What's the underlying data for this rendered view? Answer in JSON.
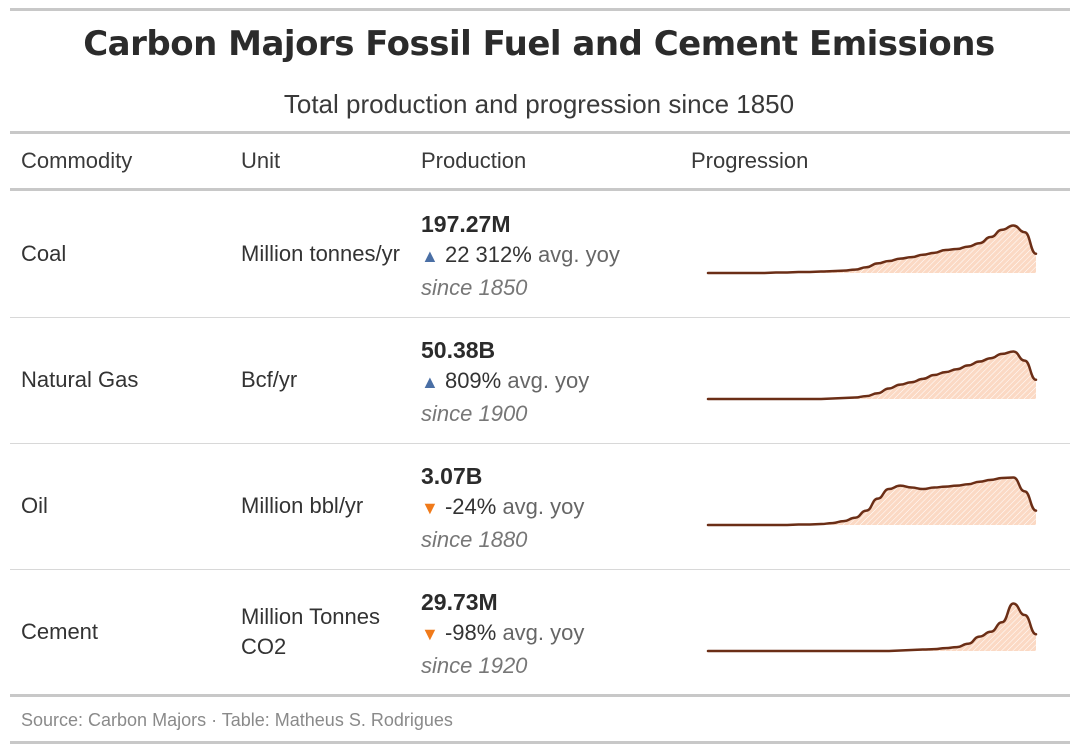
{
  "title": "Carbon Majors Fossil Fuel and Cement Emissions",
  "subtitle": "Total production and progression since 1850",
  "columns": [
    "Commodity",
    "Unit",
    "Production",
    "Progression"
  ],
  "source": "Source: Carbon Majors · Table: Matheus S. Rodrigues",
  "colors": {
    "line": "#6b2e16",
    "fill": "#fbd9c4",
    "up": "#4a6fa5",
    "down": "#f07a1a"
  },
  "chart_data": {
    "type": "table",
    "title": "Carbon Majors Fossil Fuel and Cement Emissions",
    "subtitle": "Total production and progression since 1850",
    "rows": [
      {
        "commodity": "Coal",
        "unit": "Million tonnes/yr",
        "production": "197.27M",
        "direction": "up",
        "yoy": "22 312%",
        "yoy_suffix": "avg. yoy",
        "since": "since 1850",
        "trend": [
          0,
          0,
          0,
          0,
          0,
          0,
          0.01,
          0.01,
          0.02,
          0.02,
          0.03,
          0.04,
          0.05,
          0.07,
          0.12,
          0.2,
          0.25,
          0.3,
          0.33,
          0.38,
          0.42,
          0.48,
          0.5,
          0.55,
          0.62,
          0.75,
          0.9,
          0.99,
          0.85,
          0.4
        ]
      },
      {
        "commodity": "Natural Gas",
        "unit": "Bcf/yr",
        "production": "50.38B",
        "direction": "up",
        "yoy": "809%",
        "yoy_suffix": "avg. yoy",
        "since": "since 1900",
        "trend": [
          0,
          0,
          0,
          0,
          0,
          0,
          0,
          0,
          0,
          0,
          0,
          0.01,
          0.02,
          0.03,
          0.06,
          0.12,
          0.22,
          0.3,
          0.35,
          0.42,
          0.5,
          0.56,
          0.62,
          0.7,
          0.78,
          0.85,
          0.94,
          0.99,
          0.8,
          0.4
        ]
      },
      {
        "commodity": "Oil",
        "unit": "Million bbl/yr",
        "production": "3.07B",
        "direction": "down",
        "yoy": "-24%",
        "yoy_suffix": "avg. yoy",
        "since": "since 1880",
        "trend": [
          0,
          0,
          0,
          0,
          0,
          0,
          0,
          0,
          0.01,
          0.01,
          0.02,
          0.04,
          0.08,
          0.15,
          0.3,
          0.55,
          0.75,
          0.82,
          0.78,
          0.75,
          0.78,
          0.8,
          0.82,
          0.85,
          0.9,
          0.94,
          0.98,
          0.99,
          0.7,
          0.3
        ]
      },
      {
        "commodity": "Cement",
        "unit": "Million Tonnes CO2",
        "production": "29.73M",
        "direction": "down",
        "yoy": "-98%",
        "yoy_suffix": "avg. yoy",
        "since": "since 1920",
        "trend": [
          0,
          0,
          0,
          0,
          0,
          0,
          0,
          0,
          0,
          0,
          0,
          0,
          0,
          0,
          0,
          0,
          0,
          0.01,
          0.02,
          0.03,
          0.04,
          0.06,
          0.08,
          0.15,
          0.3,
          0.4,
          0.6,
          0.99,
          0.75,
          0.35
        ]
      }
    ]
  }
}
